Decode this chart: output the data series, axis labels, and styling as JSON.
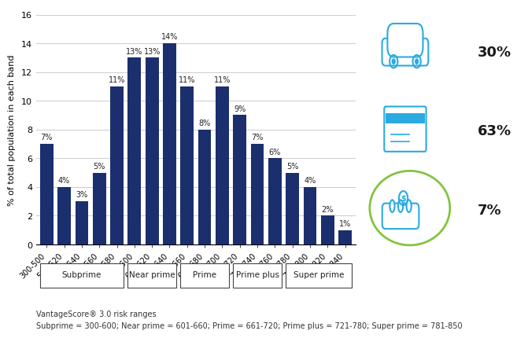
{
  "categories": [
    "300-500",
    "501-520",
    "521-540",
    "541-560",
    "561-580",
    "581-600",
    "601-620",
    "621-640",
    "641-660",
    "661-680",
    "681-700",
    "701-720",
    "721-740",
    "741-760",
    "761-780",
    "781-800",
    "801-820",
    "821-840"
  ],
  "values": [
    7,
    4,
    3,
    5,
    11,
    13,
    13,
    14,
    11,
    8,
    11,
    9,
    7,
    6,
    5,
    4,
    2,
    1
  ],
  "bar_color": "#1B2F6E",
  "ylim": [
    0,
    16
  ],
  "yticks": [
    0,
    2,
    4,
    6,
    8,
    10,
    12,
    14,
    16
  ],
  "ylabel": "% of total population in each band",
  "grid_color": "#cccccc",
  "background_color": "#ffffff",
  "segments": [
    {
      "label": "Subprime",
      "start": 0,
      "end": 5
    },
    {
      "label": "Near prime",
      "start": 5,
      "end": 8
    },
    {
      "label": "Prime",
      "start": 8,
      "end": 11
    },
    {
      "label": "Prime plus",
      "start": 11,
      "end": 14
    },
    {
      "label": "Super prime",
      "start": 14,
      "end": 18
    }
  ],
  "footnote_line1": "VantageScore® 3.0 risk ranges",
  "footnote_line2": "Subprime = 300-600; Near prime = 601-660; Prime = 661-720; Prime plus = 721-780; Super prime = 781-850",
  "legend_pcts": [
    "30%",
    "63%",
    "7%"
  ],
  "icon_color": "#2aaae1",
  "circle_color": "#84c441"
}
